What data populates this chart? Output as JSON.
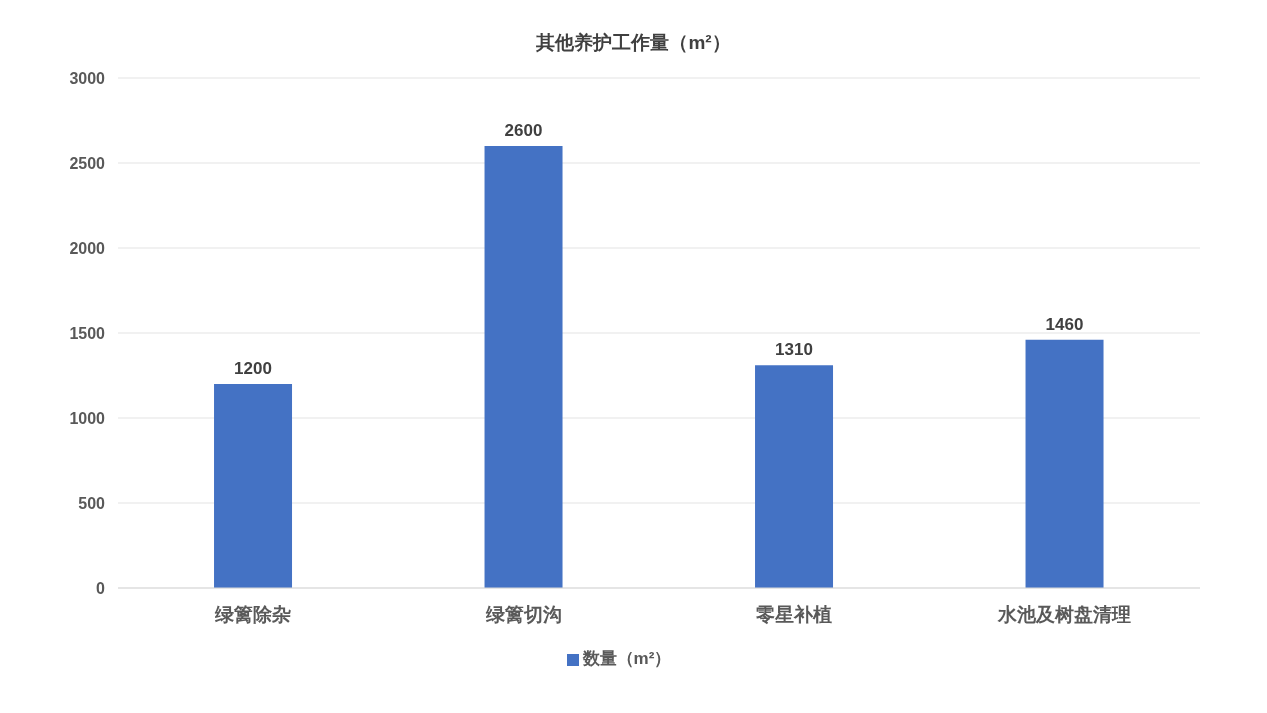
{
  "chart_data": {
    "type": "bar",
    "title": "其他养护工作量（m²）",
    "categories": [
      "绿篱除杂",
      "绿篱切沟",
      "零星补植",
      "水池及树盘清理"
    ],
    "series": [
      {
        "name": "数量（m²）",
        "color": "#4472c4",
        "values": [
          1200,
          2600,
          1310,
          1460
        ]
      }
    ],
    "ylim": [
      0,
      3000
    ],
    "yticks": [
      0,
      500,
      1000,
      1500,
      2000,
      2500,
      3000
    ],
    "grid": "y",
    "legend": "bottom",
    "data_labels": true
  }
}
